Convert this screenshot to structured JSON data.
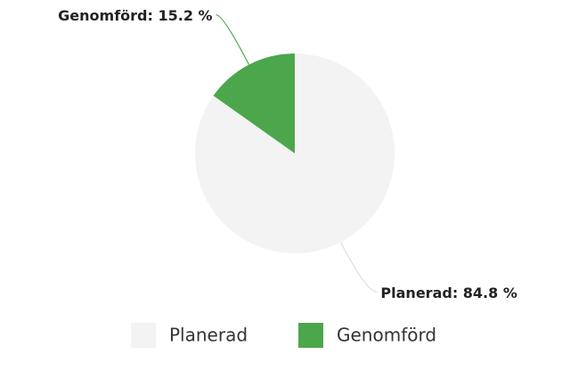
{
  "chart_data": {
    "type": "pie",
    "categories": [
      "Planerad",
      "Genomförd"
    ],
    "values": [
      84.8,
      15.2
    ],
    "value_labels": [
      "Planerad: 84.8 %",
      "Genomförd: 15.2 %"
    ],
    "colors": [
      "#f3f3f3",
      "#4ca64c"
    ],
    "legend": "bottom"
  }
}
